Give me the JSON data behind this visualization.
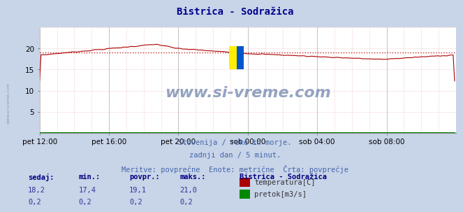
{
  "title": "Bistrica - Sodražica",
  "title_color": "#00008B",
  "bg_color": "#c8d4e8",
  "plot_bg_color": "#ffffff",
  "grid_color": "#e8b0b0",
  "xlim": [
    0,
    288
  ],
  "ylim": [
    0,
    25
  ],
  "yticks": [
    5,
    10,
    15,
    20
  ],
  "xtick_positions": [
    0,
    48,
    96,
    144,
    192,
    240
  ],
  "xtick_labels": [
    "pet 12:00",
    "pet 16:00",
    "pet 20:00",
    "sob 00:00",
    "sob 04:00",
    "sob 08:00"
  ],
  "avg_temp": 19.1,
  "temp_color": "#aa0000",
  "flow_color": "#008800",
  "avg_line_color": "#cc2222",
  "watermark_text": "www.si-vreme.com",
  "watermark_color": "#8899bb",
  "subtitle1": "Slovenija / reke in morje.",
  "subtitle2": "zadnji dan / 5 minut.",
  "subtitle3": "Meritve: povprečne  Enote: metrične  Črta: povprečje",
  "subtitle_color": "#4466aa",
  "legend_title": "Bistrica - Sodražica",
  "legend_title_color": "#000080",
  "table_headers": [
    "sedaj:",
    "min.:",
    "povpr.:",
    "maks.:"
  ],
  "table_temp": [
    "18,2",
    "17,4",
    "19,1",
    "21,0"
  ],
  "table_flow": [
    "0,2",
    "0,2",
    "0,2",
    "0,2"
  ],
  "table_color": "#000080",
  "table_val_color": "#333399",
  "sidewater": "www.si-vreme.com"
}
